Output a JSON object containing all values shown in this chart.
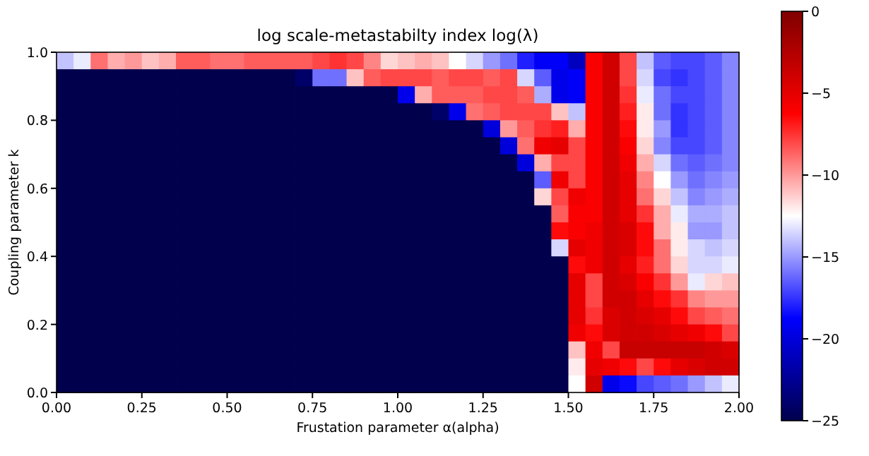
{
  "chart_data": {
    "type": "heatmap",
    "title": "log scale-metastabilty index log(λ)",
    "xlabel": "Frustation parameter α(alpha)",
    "ylabel": "Coupling parameter k",
    "x": [
      0.025,
      0.075,
      0.125,
      0.175,
      0.225,
      0.275,
      0.325,
      0.375,
      0.425,
      0.475,
      0.525,
      0.575,
      0.625,
      0.675,
      0.725,
      0.775,
      0.825,
      0.875,
      0.925,
      0.975,
      1.025,
      1.075,
      1.125,
      1.175,
      1.225,
      1.275,
      1.325,
      1.375,
      1.425,
      1.475,
      1.525,
      1.575,
      1.625,
      1.675,
      1.725,
      1.775,
      1.825,
      1.875,
      1.925,
      1.975
    ],
    "y": [
      0.975,
      0.925,
      0.875,
      0.825,
      0.775,
      0.725,
      0.675,
      0.625,
      0.575,
      0.525,
      0.475,
      0.425,
      0.375,
      0.325,
      0.275,
      0.225,
      0.175,
      0.125,
      0.075,
      0.025
    ],
    "xlim": [
      0,
      2
    ],
    "xticks": [
      {
        "value": 0,
        "label": "0.00"
      },
      {
        "value": 0.25,
        "label": "0.25"
      },
      {
        "value": 0.5,
        "label": "0.50"
      },
      {
        "value": 0.75,
        "label": "0.75"
      },
      {
        "value": 1,
        "label": "1.00"
      },
      {
        "value": 1.25,
        "label": "1.25"
      },
      {
        "value": 1.5,
        "label": "1.50"
      },
      {
        "value": 1.75,
        "label": "1.75"
      },
      {
        "value": 2,
        "label": "2.00"
      }
    ],
    "ylim": [
      0,
      1
    ],
    "yticks": [
      {
        "value": 0,
        "label": "0.0"
      },
      {
        "value": 0.2,
        "label": "0.2"
      },
      {
        "value": 0.4,
        "label": "0.4"
      },
      {
        "value": 0.6,
        "label": "0.6"
      },
      {
        "value": 0.8,
        "label": "0.8"
      },
      {
        "value": 1,
        "label": "1.0"
      }
    ],
    "clim": [
      -25,
      0
    ],
    "cticks": [
      {
        "value": -25,
        "label": "−25"
      },
      {
        "value": -20,
        "label": "−20"
      },
      {
        "value": -15,
        "label": "−15"
      },
      {
        "value": -10,
        "label": "−10"
      },
      {
        "value": -5,
        "label": "−5"
      },
      0
    ],
    "cells": [
      [
        -14,
        -13,
        -9,
        -10.5,
        -10,
        -11,
        -10.5,
        -8.5,
        -8.5,
        -9,
        -9,
        -8.5,
        -8.5,
        -8.5,
        -8.5,
        -8,
        -7.5,
        -8,
        -9.5,
        -11.5,
        -11,
        -10.5,
        -11,
        -12.5,
        -13.5,
        -15,
        -16,
        -18,
        -19,
        -19,
        -21,
        -6,
        -4,
        -8,
        -14,
        -16.5,
        -17,
        -17,
        -16.5,
        -15.5
      ],
      [
        -25,
        -25,
        -25,
        -25,
        -25,
        -25,
        -25,
        -25,
        -25,
        -25,
        -25,
        -25,
        -25,
        -25,
        -24,
        -16,
        -16,
        -11,
        -8.5,
        -8,
        -8,
        -8,
        -8.5,
        -8,
        -8,
        -8.5,
        -8,
        -13.5,
        -16.5,
        -19.5,
        -19,
        -6,
        -4,
        -8,
        -13.5,
        -17,
        -17.5,
        -17,
        -16.5,
        -15.5
      ],
      [
        -25,
        -25,
        -25,
        -25,
        -25,
        -25,
        -25,
        -25,
        -25,
        -25,
        -25,
        -25,
        -25,
        -25,
        -25,
        -25,
        -25,
        -25,
        -25,
        -25,
        -19.5,
        -10.5,
        -8.5,
        -8.5,
        -8.5,
        -8,
        -8,
        -8.5,
        -14.5,
        -19.5,
        -19,
        -6,
        -4,
        -7.5,
        -13,
        -16,
        -17,
        -17,
        -16.5,
        -15.5
      ],
      [
        -25,
        -25,
        -25,
        -25,
        -25,
        -25,
        -25,
        -25,
        -25,
        -25,
        -25,
        -25,
        -25,
        -25,
        -25,
        -25,
        -25,
        -25,
        -25,
        -25,
        -25,
        -25,
        -24,
        -19.5,
        -9,
        -8.5,
        -8,
        -8,
        -8,
        -11,
        -14,
        -6,
        -4,
        -7,
        -12,
        -16,
        -17.5,
        -17,
        -16.5,
        -15.5
      ],
      [
        -25,
        -25,
        -25,
        -25,
        -25,
        -25,
        -25,
        -25,
        -25,
        -25,
        -25,
        -25,
        -25,
        -25,
        -25,
        -25,
        -25,
        -25,
        -25,
        -25,
        -25,
        -25,
        -25,
        -25,
        -25,
        -20,
        -10,
        -8.5,
        -7.5,
        -7,
        -10.5,
        -6,
        -4,
        -6.5,
        -12,
        -15,
        -17.5,
        -17,
        -16.5,
        -15.5
      ],
      [
        -25,
        -25,
        -25,
        -25,
        -25,
        -25,
        -25,
        -25,
        -25,
        -25,
        -25,
        -25,
        -25,
        -25,
        -25,
        -25,
        -25,
        -25,
        -25,
        -25,
        -25,
        -25,
        -25,
        -25,
        -25,
        -25,
        -20,
        -9,
        -5.5,
        -5,
        -8,
        -6,
        -4,
        -6,
        -11.5,
        -15.5,
        -17,
        -17,
        -16.5,
        -15.5
      ],
      [
        -25,
        -25,
        -25,
        -25,
        -25,
        -25,
        -25,
        -25,
        -25,
        -25,
        -25,
        -25,
        -25,
        -25,
        -25,
        -25,
        -25,
        -25,
        -25,
        -25,
        -25,
        -25,
        -25,
        -25,
        -25,
        -25,
        -25,
        -20,
        -10.5,
        -8,
        -8,
        -6,
        -4,
        -5.5,
        -10.5,
        -13.5,
        -16,
        -16.5,
        -16,
        -15.5
      ],
      [
        -25,
        -25,
        -25,
        -25,
        -25,
        -25,
        -25,
        -25,
        -25,
        -25,
        -25,
        -25,
        -25,
        -25,
        -25,
        -25,
        -25,
        -25,
        -25,
        -25,
        -25,
        -25,
        -25,
        -25,
        -25,
        -25,
        -25,
        -25,
        -16.5,
        -5.5,
        -8,
        -6,
        -4,
        -5,
        -9.5,
        -12.5,
        -15,
        -16,
        -15.5,
        -15
      ],
      [
        -25,
        -25,
        -25,
        -25,
        -25,
        -25,
        -25,
        -25,
        -25,
        -25,
        -25,
        -25,
        -25,
        -25,
        -25,
        -25,
        -25,
        -25,
        -25,
        -25,
        -25,
        -25,
        -25,
        -25,
        -25,
        -25,
        -25,
        -25,
        -11.5,
        -8,
        -5.5,
        -6,
        -4,
        -5,
        -9,
        -11.5,
        -14,
        -15.5,
        -15,
        -14.5
      ],
      [
        -25,
        -25,
        -25,
        -25,
        -25,
        -25,
        -25,
        -25,
        -25,
        -25,
        -25,
        -25,
        -25,
        -25,
        -25,
        -25,
        -25,
        -25,
        -25,
        -25,
        -25,
        -25,
        -25,
        -25,
        -25,
        -25,
        -25,
        -25,
        -25,
        -8.5,
        -6,
        -6,
        -4,
        -5,
        -7.5,
        -10.5,
        -13,
        -14.5,
        -14.5,
        -14
      ],
      [
        -25,
        -25,
        -25,
        -25,
        -25,
        -25,
        -25,
        -25,
        -25,
        -25,
        -25,
        -25,
        -25,
        -25,
        -25,
        -25,
        -25,
        -25,
        -25,
        -25,
        -25,
        -25,
        -25,
        -25,
        -25,
        -25,
        -25,
        -25,
        -25,
        -6.5,
        -6,
        -5.5,
        -4,
        -4.5,
        -6.5,
        -10.5,
        -12,
        -15,
        -15,
        -14
      ],
      [
        -25,
        -25,
        -25,
        -25,
        -25,
        -25,
        -25,
        -25,
        -25,
        -25,
        -25,
        -25,
        -25,
        -25,
        -25,
        -25,
        -25,
        -25,
        -25,
        -25,
        -25,
        -25,
        -25,
        -25,
        -25,
        -25,
        -25,
        -25,
        -25,
        -13.5,
        -5,
        -5.5,
        -4,
        -4.5,
        -6.5,
        -9,
        -12,
        -13.5,
        -14,
        -13.5
      ],
      [
        -25,
        -25,
        -25,
        -25,
        -25,
        -25,
        -25,
        -25,
        -25,
        -25,
        -25,
        -25,
        -25,
        -25,
        -25,
        -25,
        -25,
        -25,
        -25,
        -25,
        -25,
        -25,
        -25,
        -25,
        -25,
        -25,
        -25,
        -25,
        -25,
        -25,
        -6.5,
        -5.5,
        -4,
        -5,
        -7,
        -9,
        -11.5,
        -13.5,
        -13.5,
        -13
      ],
      [
        -25,
        -25,
        -25,
        -25,
        -25,
        -25,
        -25,
        -25,
        -25,
        -25,
        -25,
        -25,
        -25,
        -25,
        -25,
        -25,
        -25,
        -25,
        -25,
        -25,
        -25,
        -25,
        -25,
        -25,
        -25,
        -25,
        -25,
        -25,
        -25,
        -25,
        -5,
        -8,
        -4,
        -4.5,
        -6,
        -7.5,
        -10,
        -13,
        -11.5,
        -11
      ],
      [
        -25,
        -25,
        -25,
        -25,
        -25,
        -25,
        -25,
        -25,
        -25,
        -25,
        -25,
        -25,
        -25,
        -25,
        -25,
        -25,
        -25,
        -25,
        -25,
        -25,
        -25,
        -25,
        -25,
        -25,
        -25,
        -25,
        -25,
        -25,
        -25,
        -25,
        -5,
        -8,
        -4,
        -4,
        -5,
        -6.5,
        -7.5,
        -9.5,
        -10,
        -10
      ],
      [
        -25,
        -25,
        -25,
        -25,
        -25,
        -25,
        -25,
        -25,
        -25,
        -25,
        -25,
        -25,
        -25,
        -25,
        -25,
        -25,
        -25,
        -25,
        -25,
        -25,
        -25,
        -25,
        -25,
        -25,
        -25,
        -25,
        -25,
        -25,
        -25,
        -25,
        -5,
        -7.5,
        -4.5,
        -4,
        -4.5,
        -5,
        -6.5,
        -8,
        -8.5,
        -9
      ],
      [
        -25,
        -25,
        -25,
        -25,
        -25,
        -25,
        -25,
        -25,
        -25,
        -25,
        -25,
        -25,
        -25,
        -25,
        -25,
        -25,
        -25,
        -25,
        -25,
        -25,
        -25,
        -25,
        -25,
        -25,
        -25,
        -25,
        -25,
        -25,
        -25,
        -25,
        -5.5,
        -6.5,
        -4.5,
        -4,
        -4,
        -4.5,
        -5,
        -5.5,
        -6.5,
        -8
      ],
      [
        -25,
        -25,
        -25,
        -25,
        -25,
        -25,
        -25,
        -25,
        -25,
        -25,
        -25,
        -25,
        -25,
        -25,
        -25,
        -25,
        -25,
        -25,
        -25,
        -25,
        -25,
        -25,
        -25,
        -25,
        -25,
        -25,
        -25,
        -25,
        -25,
        -25,
        -11,
        -5.5,
        -8,
        -3.5,
        -3.5,
        -3.5,
        -3.5,
        -3.5,
        -4,
        -4.5
      ],
      [
        -25,
        -25,
        -25,
        -25,
        -25,
        -25,
        -25,
        -25,
        -25,
        -25,
        -25,
        -25,
        -25,
        -25,
        -25,
        -25,
        -25,
        -25,
        -25,
        -25,
        -25,
        -25,
        -25,
        -25,
        -25,
        -25,
        -25,
        -25,
        -25,
        -25,
        -12,
        -5,
        -5.5,
        -6.5,
        -8,
        -6.5,
        -5,
        -4.5,
        -4,
        -4
      ],
      [
        -25,
        -25,
        -25,
        -25,
        -25,
        -25,
        -25,
        -25,
        -25,
        -25,
        -25,
        -25,
        -25,
        -25,
        -25,
        -25,
        -25,
        -25,
        -25,
        -25,
        -25,
        -25,
        -25,
        -25,
        -25,
        -25,
        -25,
        -25,
        -25,
        -25,
        -12.5,
        -4,
        -19.5,
        -18.5,
        -17,
        -16.5,
        -16,
        -15,
        -14,
        -13
      ]
    ]
  }
}
